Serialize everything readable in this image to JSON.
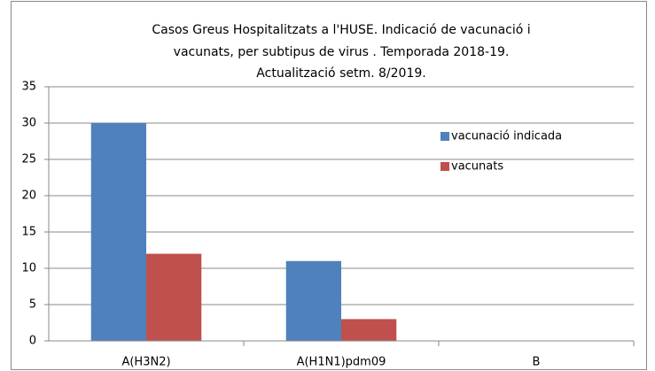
{
  "chart_data": {
    "type": "bar",
    "title": [
      "Casos  Greus Hospitalitzats  a l'HUSE. Indicació  de vacunació  i",
      "vacunats, per subtipus de virus . Temporada 2018-19.",
      "Actualització setm.  8/2019."
    ],
    "categories": [
      "A(H3N2)",
      "A(H1N1)pdm09",
      "B"
    ],
    "series": [
      {
        "name": "vacunació indicada",
        "color": "#4f81bd",
        "values": [
          30,
          11,
          0
        ]
      },
      {
        "name": "vacunats",
        "color": "#c0504d",
        "values": [
          12,
          3,
          0
        ]
      }
    ],
    "ylim": [
      0,
      35
    ],
    "yticks": [
      0,
      5,
      10,
      15,
      20,
      25,
      30,
      35
    ],
    "grid": true,
    "legend": "right"
  }
}
